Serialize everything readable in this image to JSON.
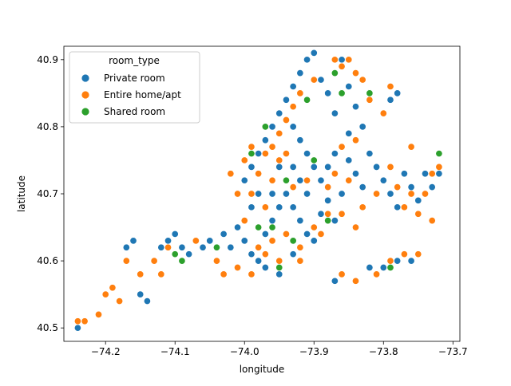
{
  "chart_data": {
    "type": "scatter",
    "title": "",
    "xlabel": "longitude",
    "ylabel": "latitude",
    "xlim": [
      -74.26,
      -73.69
    ],
    "ylim": [
      40.48,
      40.92
    ],
    "xticks": [
      -74.2,
      -74.1,
      -74.0,
      -73.9,
      -73.8,
      -73.7
    ],
    "xtick_labels": [
      "−74.2",
      "−74.1",
      "−74.0",
      "−73.9",
      "−73.8",
      "−73.7"
    ],
    "yticks": [
      40.5,
      40.6,
      40.7,
      40.8,
      40.9
    ],
    "ytick_labels": [
      "40.5",
      "40.6",
      "40.7",
      "40.8",
      "40.9"
    ],
    "grid": false,
    "legend": {
      "title": "room_type",
      "placement": "top-left"
    },
    "series": [
      {
        "name": "Private room",
        "color": "#1f77b4",
        "points": [
          [
            -74.24,
            40.5
          ],
          [
            -74.17,
            40.62
          ],
          [
            -74.16,
            40.63
          ],
          [
            -74.15,
            40.55
          ],
          [
            -74.14,
            40.54
          ],
          [
            -74.12,
            40.62
          ],
          [
            -74.11,
            40.63
          ],
          [
            -74.1,
            40.64
          ],
          [
            -74.09,
            40.62
          ],
          [
            -74.08,
            40.61
          ],
          [
            -74.06,
            40.62
          ],
          [
            -74.05,
            40.63
          ],
          [
            -74.03,
            40.64
          ],
          [
            -74.02,
            40.62
          ],
          [
            -74.01,
            40.65
          ],
          [
            -74.0,
            40.63
          ],
          [
            -73.99,
            40.61
          ],
          [
            -73.98,
            40.6
          ],
          [
            -73.97,
            40.64
          ],
          [
            -73.96,
            40.66
          ],
          [
            -73.95,
            40.68
          ],
          [
            -73.94,
            40.7
          ],
          [
            -73.93,
            40.68
          ],
          [
            -73.92,
            40.66
          ],
          [
            -73.91,
            40.64
          ],
          [
            -73.9,
            40.63
          ],
          [
            -73.89,
            40.67
          ],
          [
            -73.88,
            40.69
          ],
          [
            -73.87,
            40.66
          ],
          [
            -73.86,
            40.7
          ],
          [
            -74.0,
            40.72
          ],
          [
            -73.99,
            40.74
          ],
          [
            -73.98,
            40.76
          ],
          [
            -73.97,
            40.78
          ],
          [
            -73.96,
            40.8
          ],
          [
            -73.95,
            40.82
          ],
          [
            -73.94,
            40.84
          ],
          [
            -73.93,
            40.86
          ],
          [
            -73.92,
            40.88
          ],
          [
            -73.91,
            40.9
          ],
          [
            -73.9,
            40.91
          ],
          [
            -73.89,
            40.87
          ],
          [
            -73.88,
            40.85
          ],
          [
            -73.87,
            40.88
          ],
          [
            -73.86,
            40.9
          ],
          [
            -73.85,
            40.86
          ],
          [
            -73.84,
            40.83
          ],
          [
            -73.83,
            40.8
          ],
          [
            -73.85,
            40.79
          ],
          [
            -73.87,
            40.82
          ],
          [
            -73.93,
            40.8
          ],
          [
            -73.92,
            40.78
          ],
          [
            -73.91,
            40.76
          ],
          [
            -73.9,
            40.74
          ],
          [
            -73.89,
            40.72
          ],
          [
            -73.88,
            40.74
          ],
          [
            -73.87,
            40.76
          ],
          [
            -73.85,
            40.75
          ],
          [
            -73.84,
            40.73
          ],
          [
            -73.83,
            40.71
          ],
          [
            -73.82,
            40.76
          ],
          [
            -73.81,
            40.74
          ],
          [
            -73.8,
            40.72
          ],
          [
            -73.79,
            40.7
          ],
          [
            -73.78,
            40.68
          ],
          [
            -73.77,
            40.73
          ],
          [
            -73.76,
            40.71
          ],
          [
            -73.75,
            40.69
          ],
          [
            -73.74,
            40.73
          ],
          [
            -73.73,
            40.71
          ],
          [
            -73.72,
            40.73
          ],
          [
            -73.8,
            40.59
          ],
          [
            -73.78,
            40.6
          ],
          [
            -73.76,
            40.6
          ],
          [
            -73.82,
            40.59
          ],
          [
            -73.87,
            40.57
          ],
          [
            -73.86,
            40.58
          ],
          [
            -73.95,
            40.58
          ],
          [
            -73.97,
            40.59
          ],
          [
            -73.93,
            40.61
          ],
          [
            -73.78,
            40.85
          ],
          [
            -73.79,
            40.84
          ],
          [
            -73.95,
            40.74
          ],
          [
            -73.94,
            40.72
          ],
          [
            -73.96,
            40.7
          ],
          [
            -73.92,
            40.72
          ],
          [
            -73.91,
            40.7
          ],
          [
            -73.93,
            40.74
          ],
          [
            -73.98,
            40.7
          ],
          [
            -73.99,
            40.68
          ]
        ]
      },
      {
        "name": "Entire home/apt",
        "color": "#ff7f0e",
        "points": [
          [
            -74.24,
            40.51
          ],
          [
            -74.23,
            40.51
          ],
          [
            -74.21,
            40.52
          ],
          [
            -74.2,
            40.55
          ],
          [
            -74.19,
            40.56
          ],
          [
            -74.18,
            40.54
          ],
          [
            -74.17,
            40.6
          ],
          [
            -74.15,
            40.58
          ],
          [
            -74.13,
            40.6
          ],
          [
            -74.12,
            40.58
          ],
          [
            -74.11,
            40.62
          ],
          [
            -74.09,
            40.6
          ],
          [
            -74.07,
            40.63
          ],
          [
            -74.04,
            40.6
          ],
          [
            -74.03,
            40.58
          ],
          [
            -74.01,
            40.59
          ],
          [
            -73.99,
            40.58
          ],
          [
            -73.98,
            40.62
          ],
          [
            -73.96,
            40.63
          ],
          [
            -73.94,
            40.64
          ],
          [
            -73.92,
            40.62
          ],
          [
            -73.9,
            40.65
          ],
          [
            -73.89,
            40.64
          ],
          [
            -73.88,
            40.67
          ],
          [
            -73.86,
            40.67
          ],
          [
            -73.84,
            40.65
          ],
          [
            -74.01,
            40.7
          ],
          [
            -74.02,
            40.73
          ],
          [
            -74.0,
            40.75
          ],
          [
            -73.99,
            40.77
          ],
          [
            -73.98,
            40.73
          ],
          [
            -73.97,
            40.76
          ],
          [
            -73.96,
            40.77
          ],
          [
            -73.95,
            40.79
          ],
          [
            -73.94,
            40.81
          ],
          [
            -73.93,
            40.83
          ],
          [
            -73.92,
            40.85
          ],
          [
            -73.9,
            40.87
          ],
          [
            -73.87,
            40.9
          ],
          [
            -73.86,
            40.89
          ],
          [
            -73.85,
            40.9
          ],
          [
            -73.84,
            40.88
          ],
          [
            -73.83,
            40.87
          ],
          [
            -73.82,
            40.84
          ],
          [
            -73.8,
            40.82
          ],
          [
            -73.79,
            40.86
          ],
          [
            -73.84,
            40.78
          ],
          [
            -73.86,
            40.77
          ],
          [
            -73.88,
            40.71
          ],
          [
            -73.87,
            40.73
          ],
          [
            -73.85,
            40.72
          ],
          [
            -73.83,
            40.68
          ],
          [
            -73.81,
            40.7
          ],
          [
            -73.79,
            40.74
          ],
          [
            -73.78,
            40.71
          ],
          [
            -73.77,
            40.68
          ],
          [
            -73.76,
            40.7
          ],
          [
            -73.75,
            40.67
          ],
          [
            -73.74,
            40.7
          ],
          [
            -73.73,
            40.73
          ],
          [
            -73.72,
            40.74
          ],
          [
            -73.73,
            40.66
          ],
          [
            -73.76,
            40.77
          ],
          [
            -73.75,
            40.61
          ],
          [
            -73.77,
            40.61
          ],
          [
            -73.79,
            40.6
          ],
          [
            -73.81,
            40.58
          ],
          [
            -73.86,
            40.58
          ],
          [
            -73.84,
            40.57
          ],
          [
            -73.97,
            40.61
          ],
          [
            -73.95,
            40.6
          ],
          [
            -73.92,
            40.6
          ],
          [
            -73.91,
            40.72
          ],
          [
            -73.93,
            40.71
          ],
          [
            -73.96,
            40.72
          ],
          [
            -73.97,
            40.68
          ],
          [
            -74.0,
            40.66
          ],
          [
            -73.99,
            40.7
          ],
          [
            -73.94,
            40.76
          ],
          [
            -73.95,
            40.75
          ]
        ]
      },
      {
        "name": "Shared room",
        "color": "#2ca02c",
        "points": [
          [
            -74.1,
            40.61
          ],
          [
            -74.09,
            40.6
          ],
          [
            -73.99,
            40.76
          ],
          [
            -73.98,
            40.65
          ],
          [
            -73.96,
            40.65
          ],
          [
            -73.95,
            40.59
          ],
          [
            -73.93,
            40.63
          ],
          [
            -73.91,
            40.84
          ],
          [
            -73.87,
            40.88
          ],
          [
            -73.86,
            40.85
          ],
          [
            -73.88,
            40.66
          ],
          [
            -73.82,
            40.85
          ],
          [
            -73.79,
            40.59
          ],
          [
            -73.72,
            40.76
          ],
          [
            -74.04,
            40.62
          ],
          [
            -73.94,
            40.72
          ],
          [
            -73.97,
            40.8
          ],
          [
            -73.9,
            40.75
          ]
        ]
      }
    ]
  }
}
